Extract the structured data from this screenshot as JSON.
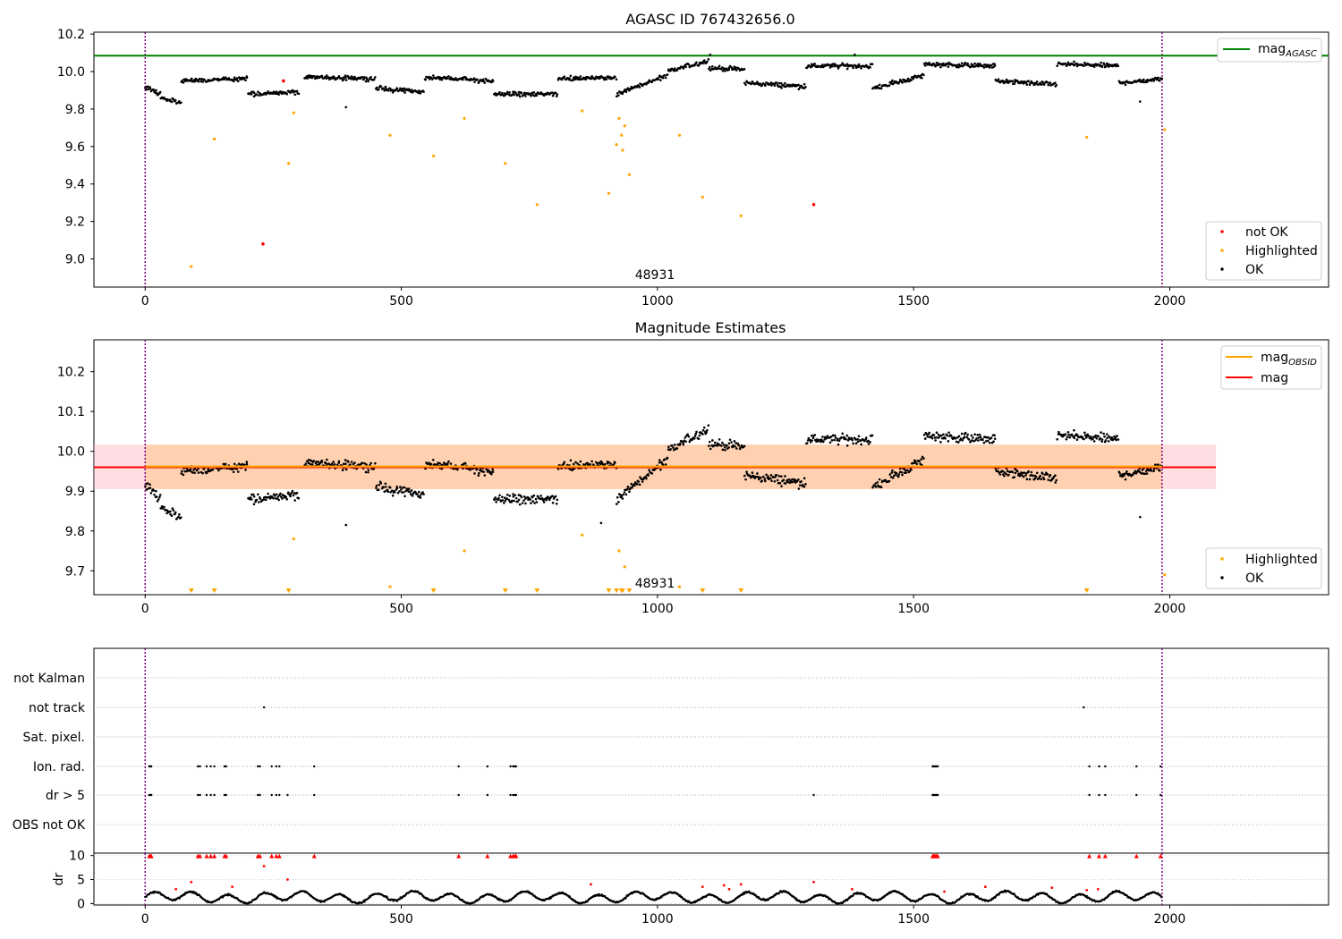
{
  "chart_data": [
    {
      "type": "scatter",
      "title": "AGASC ID 767432656.0",
      "xlabel": "",
      "ylabel": "",
      "xlim": [
        -100,
        2310
      ],
      "ylim": [
        8.85,
        10.21
      ],
      "xticks": [
        "0",
        "500",
        "1000",
        "1500",
        "2000"
      ],
      "yticks": [
        "9.0",
        "9.2",
        "9.4",
        "9.6",
        "9.8",
        "10.0",
        "10.2"
      ],
      "annotation": "48931",
      "vlines": [
        0,
        1985
      ],
      "hline": {
        "name": "mag_AGASC",
        "value": 10.085,
        "color": "#008000"
      },
      "legend_top": [
        {
          "label": "mag",
          "sub": "AGASC",
          "color": "#008000"
        }
      ],
      "legend_bottom": [
        {
          "label": "not OK",
          "color": "#ff0000"
        },
        {
          "label": "Highlighted",
          "color": "#ffa500"
        },
        {
          "label": "OK",
          "color": "#000000"
        }
      ],
      "highlighted": [
        [
          90,
          8.96
        ],
        [
          135,
          9.64
        ],
        [
          280,
          9.51
        ],
        [
          290,
          9.78
        ],
        [
          478,
          9.66
        ],
        [
          563,
          9.55
        ],
        [
          623,
          9.75
        ],
        [
          703,
          9.51
        ],
        [
          765,
          9.29
        ],
        [
          853,
          9.79
        ],
        [
          905,
          9.35
        ],
        [
          920,
          9.61
        ],
        [
          925,
          9.75
        ],
        [
          930,
          9.66
        ],
        [
          932,
          9.58
        ],
        [
          936,
          9.71
        ],
        [
          945,
          9.45
        ],
        [
          1043,
          9.66
        ],
        [
          1088,
          9.33
        ],
        [
          1163,
          9.23
        ],
        [
          1838,
          9.65
        ],
        [
          1990,
          9.69
        ]
      ],
      "not_ok": [
        [
          230,
          9.08
        ],
        [
          270,
          9.95
        ],
        [
          1305,
          9.29
        ]
      ],
      "ok_segments": [
        [
          0,
          30,
          9.92,
          9.88
        ],
        [
          30,
          70,
          9.86,
          9.83
        ],
        [
          70,
          200,
          9.95,
          9.96
        ],
        [
          200,
          300,
          9.88,
          9.89
        ],
        [
          310,
          450,
          9.97,
          9.96
        ],
        [
          450,
          545,
          9.91,
          9.89
        ],
        [
          545,
          680,
          9.97,
          9.95
        ],
        [
          680,
          805,
          9.88,
          9.88
        ],
        [
          805,
          920,
          9.96,
          9.97
        ],
        [
          920,
          1020,
          9.88,
          9.98
        ],
        [
          1020,
          1100,
          10.0,
          10.06
        ],
        [
          1100,
          1170,
          10.02,
          10.01
        ],
        [
          1170,
          1290,
          9.94,
          9.92
        ],
        [
          1290,
          1420,
          10.03,
          10.03
        ],
        [
          1420,
          1520,
          9.91,
          9.98
        ],
        [
          1520,
          1660,
          10.04,
          10.03
        ],
        [
          1660,
          1780,
          9.95,
          9.93
        ],
        [
          1780,
          1900,
          10.04,
          10.03
        ],
        [
          1900,
          1985,
          9.94,
          9.96
        ]
      ],
      "ok_outliers": [
        [
          392,
          9.81
        ],
        [
          1942,
          9.84
        ],
        [
          1103,
          10.09
        ],
        [
          1385,
          10.09
        ]
      ]
    },
    {
      "type": "scatter",
      "title": "Magnitude Estimates",
      "xlabel": "",
      "ylabel": "",
      "xlim": [
        -100,
        2310
      ],
      "ylim": [
        9.64,
        10.28
      ],
      "xticks": [
        "0",
        "500",
        "1000",
        "1500",
        "2000"
      ],
      "yticks": [
        "9.7",
        "9.8",
        "9.9",
        "10.0",
        "10.1",
        "10.2"
      ],
      "annotation": "48931",
      "vlines": [
        0,
        1985
      ],
      "mag_obsid": {
        "value": 9.962,
        "color": "#ffa500"
      },
      "mag": {
        "value": 9.96,
        "color": "#ff0000"
      },
      "band": [
        9.905,
        10.017
      ],
      "legend_top": [
        {
          "label": "mag",
          "sub": "OBSID",
          "color": "#ffa500"
        },
        {
          "label": "mag",
          "sub": "",
          "color": "#ff0000"
        }
      ],
      "legend_bottom": [
        {
          "label": "Highlighted",
          "color": "#ffa500"
        },
        {
          "label": "OK",
          "color": "#000000"
        }
      ],
      "highlighted": [
        [
          290,
          9.78
        ],
        [
          478,
          9.66
        ],
        [
          623,
          9.75
        ],
        [
          853,
          9.79
        ],
        [
          925,
          9.75
        ],
        [
          936,
          9.71
        ],
        [
          1043,
          9.66
        ],
        [
          1990,
          9.69
        ]
      ],
      "offscale_down": [
        90,
        135,
        280,
        563,
        703,
        765,
        905,
        920,
        930,
        932,
        945,
        1088,
        1163,
        1838
      ],
      "ok_outliers": [
        [
          392,
          9.815
        ],
        [
          1942,
          9.835
        ],
        [
          890,
          9.82
        ]
      ]
    },
    {
      "type": "scatter",
      "title": "",
      "xlim": [
        -100,
        2310
      ],
      "categories": [
        "not Kalman",
        "not track",
        "Sat. pixel.",
        "Ion. rad.",
        "dr > 5",
        "OBS not OK"
      ],
      "flags": {
        "not track": [
          232,
          1832
        ],
        "Ion. rad.": [
          8,
          10,
          12,
          103,
          107,
          120,
          128,
          135,
          155,
          158,
          220,
          224,
          247,
          256,
          262,
          330,
          612,
          668,
          713,
          718,
          721,
          724,
          1537,
          1539,
          1541,
          1543,
          1545,
          1547,
          1843,
          1862,
          1874,
          1935,
          1982
        ],
        "dr > 5": [
          8,
          10,
          12,
          103,
          107,
          120,
          128,
          135,
          155,
          158,
          220,
          224,
          247,
          256,
          262,
          278,
          330,
          612,
          668,
          713,
          718,
          721,
          724,
          1305,
          1537,
          1539,
          1541,
          1543,
          1545,
          1547,
          1843,
          1862,
          1874,
          1935,
          1982
        ]
      }
    },
    {
      "type": "scatter",
      "title": "",
      "ylabel": "dr",
      "xlim": [
        -100,
        2310
      ],
      "ylim": [
        -0.3,
        10.5
      ],
      "xticks": [
        "0",
        "500",
        "1000",
        "1500",
        "2000"
      ],
      "yticks": [
        "0",
        "5",
        "10"
      ],
      "dr_clipped": [
        8,
        10,
        12,
        103,
        107,
        120,
        128,
        135,
        155,
        158,
        220,
        224,
        247,
        256,
        262,
        330,
        612,
        668,
        713,
        718,
        721,
        724,
        1537,
        1539,
        1541,
        1543,
        1545,
        1547,
        1843,
        1862,
        1874,
        1935,
        1982
      ],
      "dr_red_points": [
        [
          232,
          7.8
        ],
        [
          278,
          5.0
        ],
        [
          90,
          4.5
        ],
        [
          60,
          3.0
        ],
        [
          170,
          3.5
        ],
        [
          1088,
          3.5
        ],
        [
          1130,
          3.8
        ],
        [
          1140,
          3.0
        ],
        [
          1163,
          4.0
        ],
        [
          1305,
          4.5
        ],
        [
          1380,
          3.0
        ],
        [
          1560,
          2.5
        ],
        [
          1640,
          3.5
        ],
        [
          1770,
          3.3
        ],
        [
          1838,
          2.8
        ],
        [
          1860,
          3.0
        ],
        [
          870,
          4.0
        ]
      ]
    }
  ]
}
